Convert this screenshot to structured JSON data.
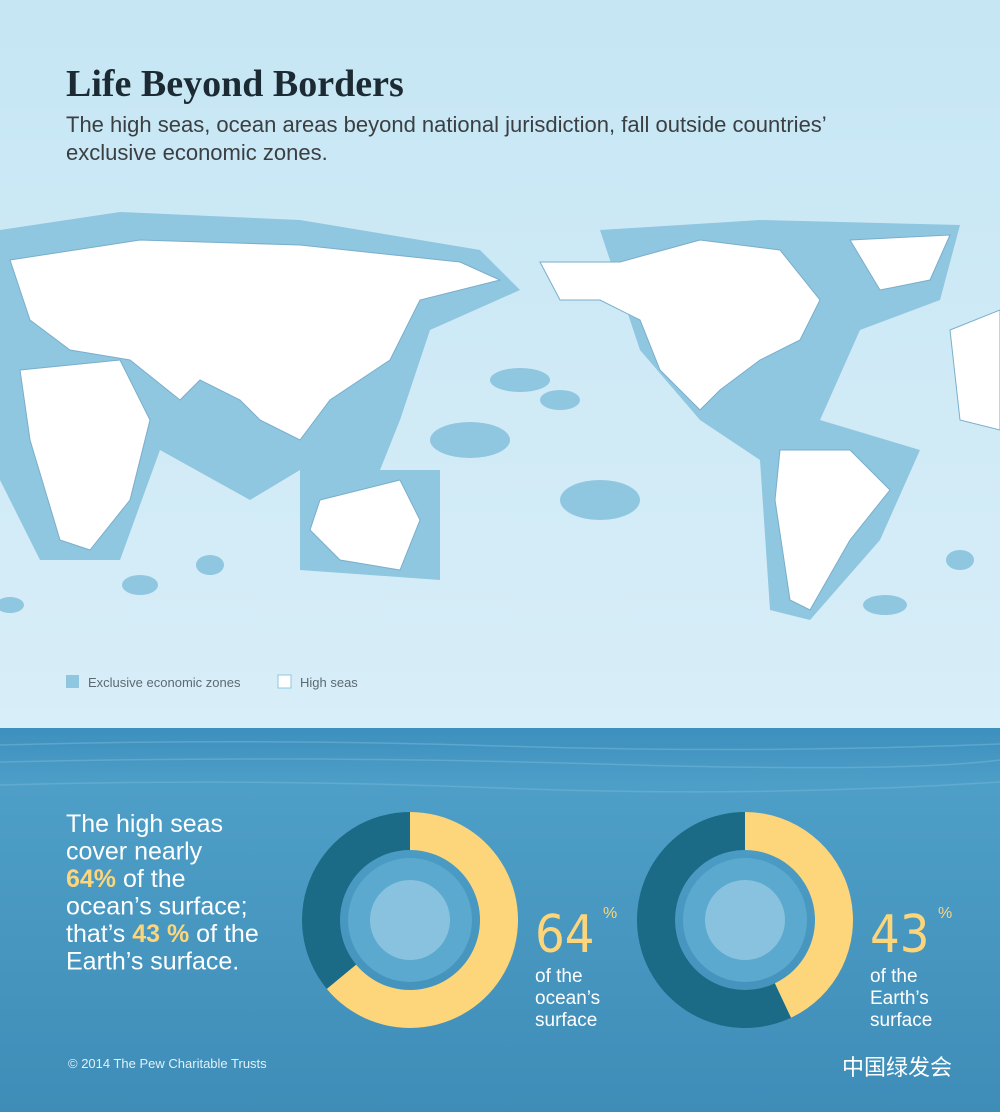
{
  "title": "Life Beyond Borders",
  "subtitle": [
    "The high seas, ocean areas beyond national jurisdiction, fall outside countries’",
    "exclusive economic zones."
  ],
  "legend": [
    {
      "name": "Exclusive economic zones",
      "color": "#8fc6e0"
    },
    {
      "name": "High seas",
      "color": "#ffffff"
    }
  ],
  "statement": [
    [
      {
        "text": "The high seas"
      }
    ],
    [
      {
        "text": "cover nearly"
      }
    ],
    [
      {
        "text": "64%",
        "highlight": true
      },
      {
        "text": " of the"
      }
    ],
    [
      {
        "text": "ocean’s surface;"
      }
    ],
    [
      {
        "text": "that’s "
      },
      {
        "text": "43 %",
        "highlight": true
      },
      {
        "text": " of the"
      }
    ],
    [
      {
        "text": "Earth’s surface."
      }
    ]
  ],
  "highlight_color": "#fdd57a",
  "copyright": "© 2014 The Pew Charitable Trusts",
  "watermark": "中国绿发会",
  "chart_data": [
    {
      "type": "donut",
      "categories": [
        null,
        null
      ],
      "values": [
        64,
        36
      ],
      "colors": [
        "#fdd57a",
        "#1b6b86"
      ],
      "unit": "%",
      "caption": [
        "of the",
        "ocean’s",
        "surface"
      ]
    },
    {
      "type": "donut",
      "categories": [
        null,
        null
      ],
      "values": [
        43,
        57
      ],
      "colors": [
        "#fdd57a",
        "#1b6b86"
      ],
      "unit": "%",
      "caption": [
        "of the",
        "Earth’s",
        "surface"
      ]
    }
  ]
}
